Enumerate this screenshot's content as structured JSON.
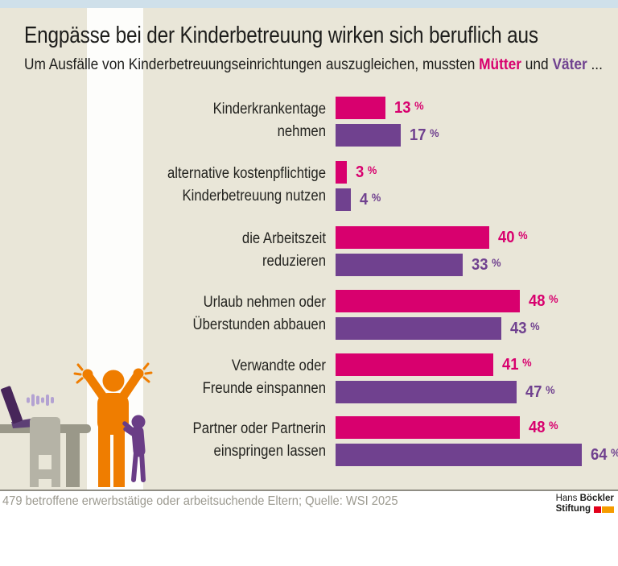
{
  "colors": {
    "top_strip": "#cfe0ea",
    "background": "#e9e6d8",
    "mothers": "#d8006e",
    "fathers": "#70418f",
    "figure_orange": "#ef7d00",
    "child_purple": "#6a3d86",
    "logo_red": "#e2001a",
    "logo_orange": "#f59c00"
  },
  "header": {
    "title": "Engpässe bei der Kinderbetreuung wirken sich beruflich aus",
    "subtitle": {
      "prefix": "Um Ausfälle von Kinderbetreuungseinrichtungen auszugleichen, mussten ",
      "mothers_word": "Mütter",
      "connector": " und ",
      "fathers_word": "Väter",
      "suffix": " ..."
    }
  },
  "chart_data": {
    "type": "bar",
    "orientation": "horizontal",
    "unit": "%",
    "value_suffix": " %",
    "xlim": [
      0,
      70
    ],
    "grid": false,
    "legend_position": "in-subtitle",
    "categories": [
      [
        "Kinderkrankentage",
        "nehmen"
      ],
      [
        "alternative kostenpflichtige",
        "Kinderbetreuung nutzen"
      ],
      [
        "die Arbeitszeit",
        "reduzieren"
      ],
      [
        "Urlaub nehmen oder",
        "Überstunden abbauen"
      ],
      [
        "Verwandte oder",
        "Freunde einspannen"
      ],
      [
        "Partner oder Partnerin",
        "einspringen lassen"
      ]
    ],
    "series": [
      {
        "name": "Mütter",
        "color": "#d8006e",
        "values": [
          13,
          3,
          40,
          48,
          41,
          48
        ]
      },
      {
        "name": "Väter",
        "color": "#70418f",
        "values": [
          17,
          4,
          33,
          43,
          47,
          64
        ]
      }
    ]
  },
  "illustration": {
    "elements": [
      "laptop-icon",
      "sound-wave-icon",
      "desk-icon",
      "chair-icon",
      "parent-figure",
      "stress-marks",
      "child-figure"
    ]
  },
  "footer": {
    "source": "479 betroffene erwerbstätige oder arbeitsuchende Eltern; Quelle: WSI 2025",
    "logo": {
      "line1_regular": "Hans",
      "line1_bold": "Böckler",
      "line2_bold": "Stiftung"
    }
  }
}
